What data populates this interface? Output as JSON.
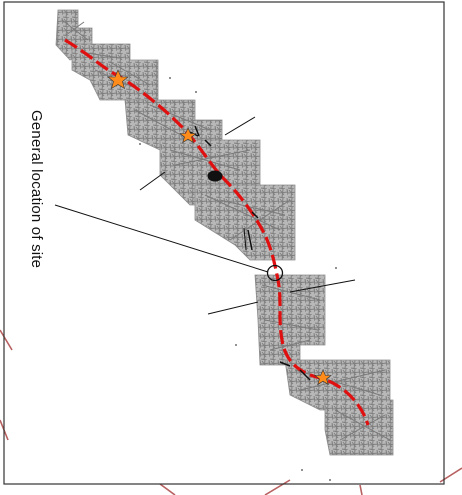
{
  "map": {
    "annotation_label": "General location of site"
  },
  "colors": {
    "background": "#ffffff",
    "frame": "#333333",
    "grid_tiles": "#8c8c8c",
    "street_mesh": "#a6a6a6",
    "route": "#e01010",
    "station_marker": "#ff8c1a",
    "labels": "#111111",
    "outer_lines": "#b05050"
  },
  "icons": {
    "site_marker": "circle-marker-icon",
    "station": "star-marker-icon"
  }
}
